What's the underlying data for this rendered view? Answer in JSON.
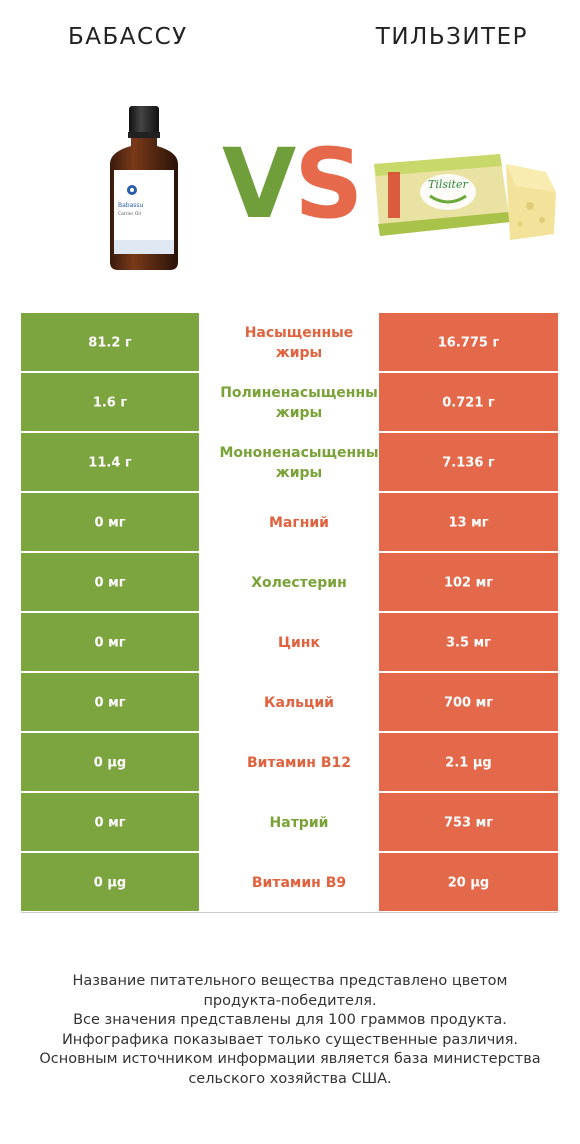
{
  "header": {
    "left_title": "Бабассу",
    "right_title": "Тильзитер",
    "vs_v": "V",
    "vs_s": "S"
  },
  "left_product": {
    "icon": "oil-bottle-icon",
    "label_line1": "Babassu",
    "label_line2": "Carrier Oil"
  },
  "right_product": {
    "icon": "cheese-block-icon",
    "label": "Tilsiter"
  },
  "colors": {
    "winner_left": "#7ca43f",
    "winner_right": "#e3694a"
  },
  "rows": [
    {
      "left": "81.2 г",
      "nutrient_line1": "Насыщенные",
      "nutrient_line2": "жиры",
      "right": "16.775 г",
      "winner": "right"
    },
    {
      "left": "1.6 г",
      "nutrient_line1": "Полиненасыщенны",
      "nutrient_line2": "жиры",
      "right": "0.721 г",
      "winner": "left"
    },
    {
      "left": "11.4 г",
      "nutrient_line1": "Мононенасыщенны",
      "nutrient_line2": "жиры",
      "right": "7.136 г",
      "winner": "left"
    },
    {
      "left": "0 мг",
      "nutrient_line1": "Магний",
      "nutrient_line2": "",
      "right": "13 мг",
      "winner": "right"
    },
    {
      "left": "0 мг",
      "nutrient_line1": "Холестерин",
      "nutrient_line2": "",
      "right": "102 мг",
      "winner": "left"
    },
    {
      "left": "0 мг",
      "nutrient_line1": "Цинк",
      "nutrient_line2": "",
      "right": "3.5 мг",
      "winner": "right"
    },
    {
      "left": "0 мг",
      "nutrient_line1": "Кальций",
      "nutrient_line2": "",
      "right": "700 мг",
      "winner": "right"
    },
    {
      "left": "0 µg",
      "nutrient_line1": "Витамин B12",
      "nutrient_line2": "",
      "right": "2.1 µg",
      "winner": "right"
    },
    {
      "left": "0 мг",
      "nutrient_line1": "Натрий",
      "nutrient_line2": "",
      "right": "753 мг",
      "winner": "left"
    },
    {
      "left": "0 µg",
      "nutrient_line1": "Витамин B9",
      "nutrient_line2": "",
      "right": "20 µg",
      "winner": "right"
    }
  ],
  "footer": {
    "lines": [
      "Название питательного вещества представлено цветом",
      "продукта-победителя.",
      "Все значения представлены для 100 граммов продукта.",
      "Инфографика показывает только существенные различия.",
      "Основным источником информации является база министерства",
      "сельского хозяйства США."
    ]
  }
}
